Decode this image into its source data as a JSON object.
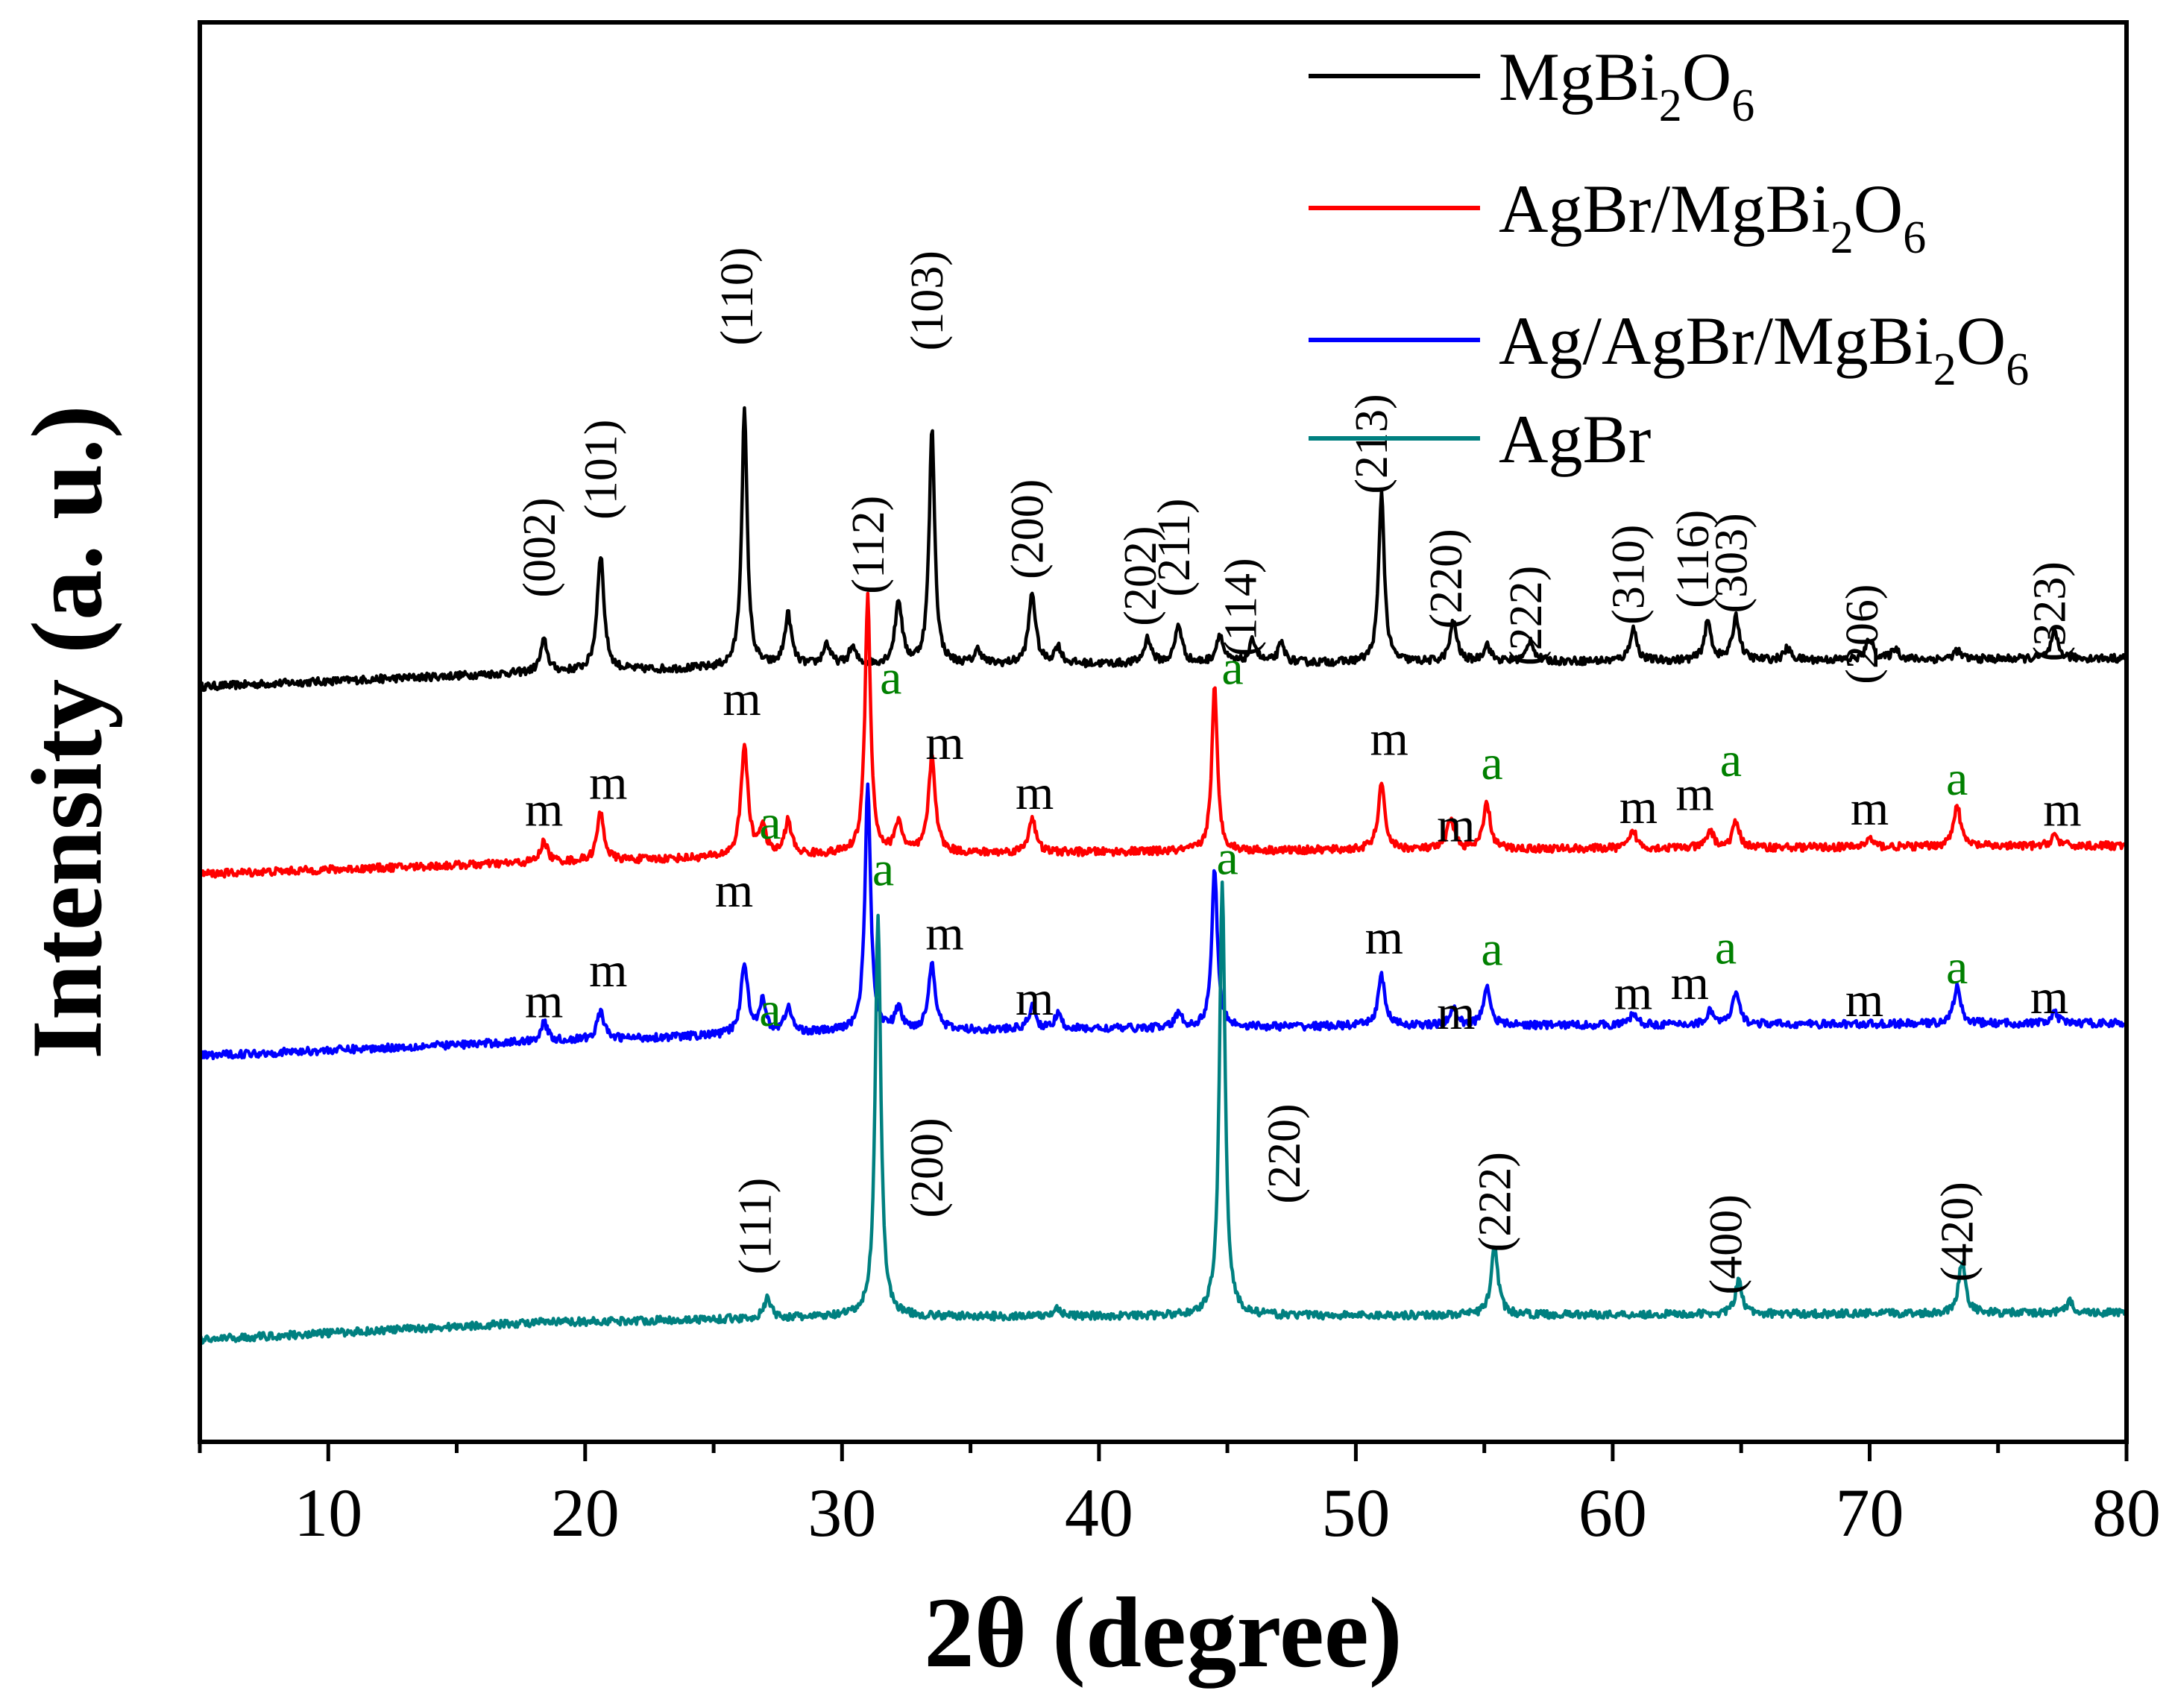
{
  "chart_data": {
    "type": "line",
    "title": "",
    "xlabel": "2θ (degree)",
    "ylabel": "Intensity (a. u.)",
    "xlim": [
      5,
      80
    ],
    "ylim": [
      0,
      100
    ],
    "yticks_shown": false,
    "xticks": [
      "10",
      "20",
      "30",
      "40",
      "50",
      "60",
      "70",
      "80"
    ],
    "legend_position": "top-right",
    "series": [
      {
        "name": "MgBi2O6",
        "legend_base": "MgBi",
        "legend_sub1": "2",
        "legend_mid": "O",
        "legend_sub2": "6",
        "color": "#000000",
        "baseline": [
          [
            5,
            53.2
          ],
          [
            18,
            54.2
          ],
          [
            30,
            54.7
          ],
          [
            50,
            54.9
          ],
          [
            80,
            55.2
          ]
        ],
        "peaks": [
          {
            "x": 18.4,
            "h": 2.2
          },
          {
            "x": 20.6,
            "h": 8.2
          },
          {
            "x": 26.2,
            "h": 18.0
          },
          {
            "x": 27.9,
            "h": 3.6
          },
          {
            "x": 29.4,
            "h": 1.5
          },
          {
            "x": 30.4,
            "h": 1.2
          },
          {
            "x": 32.2,
            "h": 4.5
          },
          {
            "x": 33.5,
            "h": 16.6
          },
          {
            "x": 35.3,
            "h": 1.0
          },
          {
            "x": 37.4,
            "h": 5.0
          },
          {
            "x": 38.4,
            "h": 1.2
          },
          {
            "x": 41.9,
            "h": 1.8
          },
          {
            "x": 43.1,
            "h": 2.7
          },
          {
            "x": 44.7,
            "h": 2.0
          },
          {
            "x": 46.0,
            "h": 1.6
          },
          {
            "x": 47.1,
            "h": 1.3
          },
          {
            "x": 51.0,
            "h": 12.0
          },
          {
            "x": 53.8,
            "h": 2.8
          },
          {
            "x": 55.1,
            "h": 1.2
          },
          {
            "x": 56.8,
            "h": 1.5
          },
          {
            "x": 60.8,
            "h": 2.3
          },
          {
            "x": 63.7,
            "h": 2.7
          },
          {
            "x": 64.8,
            "h": 3.1
          },
          {
            "x": 66.8,
            "h": 0.8
          },
          {
            "x": 70.0,
            "h": 1.5
          },
          {
            "x": 71.0,
            "h": 0.8
          },
          {
            "x": 73.4,
            "h": 0.6
          },
          {
            "x": 77.2,
            "h": 1.8
          }
        ]
      },
      {
        "name": "AgBr/MgBi2O6",
        "legend_base": "AgBr/MgBi",
        "legend_sub1": "2",
        "legend_mid": "O",
        "legend_sub2": "6",
        "color": "#ff0000",
        "baseline": [
          [
            5,
            40.0
          ],
          [
            18,
            40.8
          ],
          [
            30,
            41.4
          ],
          [
            50,
            41.7
          ],
          [
            80,
            42.0
          ]
        ],
        "peaks": [
          {
            "x": 18.4,
            "h": 1.5
          },
          {
            "x": 20.6,
            "h": 3.4
          },
          {
            "x": 26.2,
            "h": 7.8
          },
          {
            "x": 26.9,
            "h": 2.0
          },
          {
            "x": 27.9,
            "h": 2.4
          },
          {
            "x": 31.0,
            "h": 18.2
          },
          {
            "x": 32.2,
            "h": 2.2
          },
          {
            "x": 33.5,
            "h": 6.8
          },
          {
            "x": 37.4,
            "h": 2.5
          },
          {
            "x": 44.5,
            "h": 11.5
          },
          {
            "x": 51.0,
            "h": 4.5
          },
          {
            "x": 53.7,
            "h": 2.2
          },
          {
            "x": 55.1,
            "h": 3.2
          },
          {
            "x": 60.8,
            "h": 1.2
          },
          {
            "x": 63.8,
            "h": 1.2
          },
          {
            "x": 64.8,
            "h": 1.8
          },
          {
            "x": 70.0,
            "h": 0.6
          },
          {
            "x": 73.4,
            "h": 3.0
          },
          {
            "x": 77.2,
            "h": 0.8
          }
        ]
      },
      {
        "name": "Ag/AgBr/MgBi2O6",
        "legend_base": "Ag/AgBr/MgBi",
        "legend_sub1": "2",
        "legend_mid": "O",
        "legend_sub2": "6",
        "color": "#0000ff",
        "baseline": [
          [
            5,
            27.2
          ],
          [
            18,
            28.2
          ],
          [
            30,
            28.9
          ],
          [
            50,
            29.3
          ],
          [
            80,
            29.5
          ]
        ],
        "peaks": [
          {
            "x": 18.4,
            "h": 1.3
          },
          {
            "x": 20.6,
            "h": 2.0
          },
          {
            "x": 26.2,
            "h": 5.0
          },
          {
            "x": 26.9,
            "h": 2.2
          },
          {
            "x": 27.9,
            "h": 1.8
          },
          {
            "x": 31.0,
            "h": 17.5
          },
          {
            "x": 32.2,
            "h": 1.5
          },
          {
            "x": 33.5,
            "h": 4.7
          },
          {
            "x": 37.4,
            "h": 1.6
          },
          {
            "x": 38.4,
            "h": 1.0
          },
          {
            "x": 43.1,
            "h": 1.0
          },
          {
            "x": 44.5,
            "h": 11.2
          },
          {
            "x": 51.0,
            "h": 3.5
          },
          {
            "x": 53.8,
            "h": 1.2
          },
          {
            "x": 55.1,
            "h": 2.8
          },
          {
            "x": 60.8,
            "h": 0.8
          },
          {
            "x": 63.8,
            "h": 1.0
          },
          {
            "x": 64.8,
            "h": 2.2
          },
          {
            "x": 73.4,
            "h": 2.6
          },
          {
            "x": 77.2,
            "h": 0.7
          }
        ]
      },
      {
        "name": "AgBr",
        "legend_base": "AgBr",
        "legend_sub1": "",
        "legend_mid": "",
        "legend_sub2": "",
        "color": "#008080",
        "baseline": [
          [
            5,
            7.2
          ],
          [
            18,
            8.4
          ],
          [
            30,
            8.8
          ],
          [
            50,
            8.9
          ],
          [
            80,
            9.1
          ]
        ],
        "peaks": [
          {
            "x": 27.1,
            "h": 1.4
          },
          {
            "x": 31.4,
            "h": 28.5
          },
          {
            "x": 38.4,
            "h": 0.6
          },
          {
            "x": 44.8,
            "h": 30.8
          },
          {
            "x": 55.4,
            "h": 4.8
          },
          {
            "x": 64.9,
            "h": 2.3
          },
          {
            "x": 73.6,
            "h": 3.7
          },
          {
            "x": 77.8,
            "h": 0.8
          }
        ]
      }
    ],
    "annotations": {
      "mgbi2o6_hkl": [
        {
          "x": 18.4,
          "y": 63.0,
          "text": "(002)"
        },
        {
          "x": 20.8,
          "y": 68.5,
          "text": "(101)"
        },
        {
          "x": 26.1,
          "y": 80.7,
          "text": "(110)"
        },
        {
          "x": 31.2,
          "y": 63.2,
          "text": "(112)"
        },
        {
          "x": 33.5,
          "y": 80.4,
          "text": "(103)"
        },
        {
          "x": 37.4,
          "y": 64.3,
          "text": "(200)"
        },
        {
          "x": 41.8,
          "y": 61.0,
          "text": "(202)"
        },
        {
          "x": 43.1,
          "y": 63.0,
          "text": "(211)"
        },
        {
          "x": 45.7,
          "y": 58.8,
          "text": "(114)"
        },
        {
          "x": 50.8,
          "y": 70.3,
          "text": "(213)"
        },
        {
          "x": 53.7,
          "y": 60.8,
          "text": "(220)"
        },
        {
          "x": 56.8,
          "y": 58.2,
          "text": "(222)"
        },
        {
          "x": 60.8,
          "y": 61.1,
          "text": "(310)"
        },
        {
          "x": 63.3,
          "y": 62.2,
          "text": "(116)"
        },
        {
          "x": 64.8,
          "y": 61.9,
          "text": "(303)"
        },
        {
          "x": 69.9,
          "y": 56.9,
          "text": "(206)"
        },
        {
          "x": 77.2,
          "y": 58.5,
          "text": "(323)"
        }
      ],
      "agbr_hkl": [
        {
          "x": 26.8,
          "y": 15.2,
          "text": "(111)"
        },
        {
          "x": 33.5,
          "y": 19.3,
          "text": "(200)"
        },
        {
          "x": 47.4,
          "y": 20.3,
          "text": "(220)"
        },
        {
          "x": 55.6,
          "y": 16.9,
          "text": "(222)"
        },
        {
          "x": 64.6,
          "y": 13.9,
          "text": "(400)"
        },
        {
          "x": 73.6,
          "y": 14.8,
          "text": "(420)"
        }
      ],
      "phase_marks_red": [
        {
          "x": 18.4,
          "y": 43.4,
          "text": "m",
          "color": "#000000"
        },
        {
          "x": 20.9,
          "y": 45.3,
          "text": "m",
          "color": "#000000"
        },
        {
          "x": 26.1,
          "y": 51.2,
          "text": "m",
          "color": "#000000"
        },
        {
          "x": 27.2,
          "y": 42.5,
          "text": "a",
          "color": "#008000"
        },
        {
          "x": 31.9,
          "y": 52.7,
          "text": "a",
          "color": "#008000"
        },
        {
          "x": 34.0,
          "y": 48.1,
          "text": "m",
          "color": "#000000"
        },
        {
          "x": 37.5,
          "y": 44.6,
          "text": "m",
          "color": "#000000"
        },
        {
          "x": 45.2,
          "y": 53.4,
          "text": "a",
          "color": "#008000"
        },
        {
          "x": 51.3,
          "y": 48.4,
          "text": "m",
          "color": "#000000"
        },
        {
          "x": 53.9,
          "y": 42.3,
          "text": "m",
          "color": "#000000"
        },
        {
          "x": 55.3,
          "y": 46.7,
          "text": "a",
          "color": "#008000"
        },
        {
          "x": 61.0,
          "y": 43.6,
          "text": "m",
          "color": "#000000"
        },
        {
          "x": 63.2,
          "y": 44.5,
          "text": "m",
          "color": "#000000"
        },
        {
          "x": 64.6,
          "y": 46.9,
          "text": "a",
          "color": "#008000"
        },
        {
          "x": 70.0,
          "y": 43.5,
          "text": "m",
          "color": "#000000"
        },
        {
          "x": 73.4,
          "y": 45.6,
          "text": "a",
          "color": "#008000"
        },
        {
          "x": 77.5,
          "y": 43.4,
          "text": "m",
          "color": "#000000"
        }
      ],
      "phase_marks_blue": [
        {
          "x": 18.4,
          "y": 29.9,
          "text": "m",
          "color": "#000000"
        },
        {
          "x": 20.9,
          "y": 32.1,
          "text": "m",
          "color": "#000000"
        },
        {
          "x": 25.8,
          "y": 37.7,
          "text": "m",
          "color": "#000000"
        },
        {
          "x": 27.2,
          "y": 29.3,
          "text": "a",
          "color": "#008000"
        },
        {
          "x": 31.6,
          "y": 39.2,
          "text": "a",
          "color": "#008000"
        },
        {
          "x": 34.0,
          "y": 34.7,
          "text": "m",
          "color": "#000000"
        },
        {
          "x": 37.5,
          "y": 30.1,
          "text": "m",
          "color": "#000000"
        },
        {
          "x": 45.0,
          "y": 40.0,
          "text": "a",
          "color": "#008000"
        },
        {
          "x": 51.1,
          "y": 34.4,
          "text": "m",
          "color": "#000000"
        },
        {
          "x": 53.9,
          "y": 29.1,
          "text": "m",
          "color": "#000000"
        },
        {
          "x": 55.3,
          "y": 33.6,
          "text": "a",
          "color": "#008000"
        },
        {
          "x": 60.8,
          "y": 30.5,
          "text": "m",
          "color": "#000000"
        },
        {
          "x": 63.0,
          "y": 31.2,
          "text": "m",
          "color": "#000000"
        },
        {
          "x": 64.4,
          "y": 33.7,
          "text": "a",
          "color": "#008000"
        },
        {
          "x": 69.8,
          "y": 30.0,
          "text": "m",
          "color": "#000000"
        },
        {
          "x": 73.4,
          "y": 32.3,
          "text": "a",
          "color": "#008000"
        },
        {
          "x": 77.0,
          "y": 30.2,
          "text": "m",
          "color": "#000000"
        }
      ]
    }
  }
}
